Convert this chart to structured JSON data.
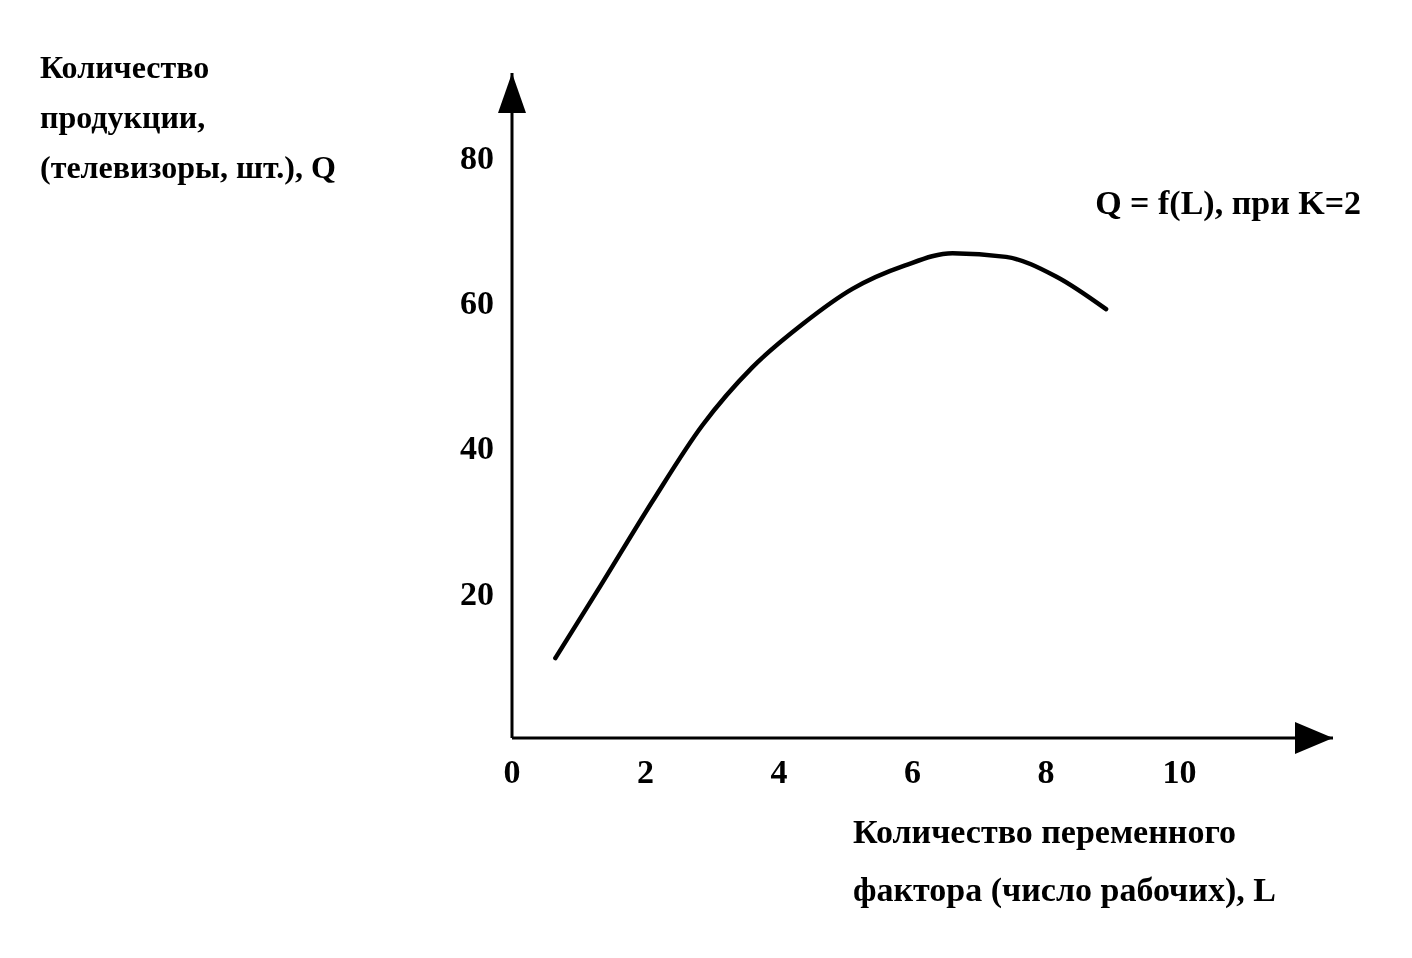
{
  "chart_data": {
    "type": "line",
    "xlabel": "Количество переменного фактора (число рабочих), L",
    "ylabel": "Количество продукции, (телевизоры, шт.), Q",
    "x": [
      0.65,
      1.33,
      2.1,
      2.85,
      3.6,
      4.36,
      5.1,
      5.88,
      6.6,
      7.4,
      8.15,
      8.9
    ],
    "series": [
      {
        "name": "Q = f(L), при K=2",
        "color": "#000000",
        "values": [
          11,
          21,
          32.5,
          43,
          51,
          57,
          61.8,
          65,
          66.7,
          66.2,
          63.5,
          59
        ]
      }
    ],
    "xlim": [
      0,
      12.3
    ],
    "xticks": [
      0,
      2,
      4,
      6,
      8,
      10
    ],
    "ylim": [
      0,
      91.5
    ],
    "yticks": [
      20,
      40,
      60,
      80
    ],
    "grid": false,
    "legend": false,
    "marker": "none",
    "line_style": "solid"
  }
}
